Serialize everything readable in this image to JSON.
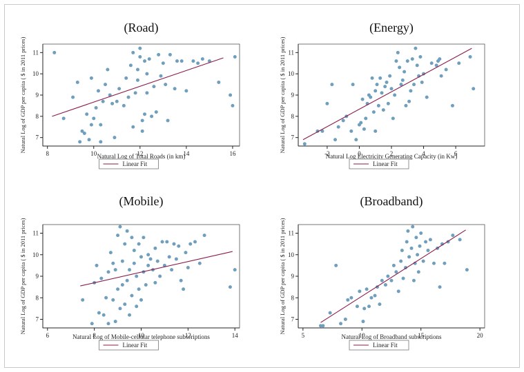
{
  "chart_data": [
    {
      "type": "scatter",
      "title": "(Road)",
      "xlabel": "Natural Log of Total Roads (in km)",
      "ylabel": "Natural Log of GDP per capita ( $ in 2011 prices)",
      "xlim": [
        7.8,
        16.3
      ],
      "ylim": [
        6.6,
        11.4
      ],
      "xticks": [
        8,
        10,
        12,
        14,
        16
      ],
      "yticks": [
        7,
        8,
        9,
        10,
        11
      ],
      "legend": "Linear Fit",
      "fit": {
        "x": [
          8.2,
          15.6
        ],
        "y": [
          8.0,
          10.75
        ]
      },
      "points": [
        [
          8.3,
          11.0
        ],
        [
          8.7,
          7.9
        ],
        [
          9.1,
          8.9
        ],
        [
          9.3,
          9.6
        ],
        [
          9.4,
          6.8
        ],
        [
          9.5,
          7.3
        ],
        [
          9.6,
          7.2
        ],
        [
          9.7,
          8.1
        ],
        [
          9.8,
          6.9
        ],
        [
          9.9,
          7.6
        ],
        [
          9.9,
          9.8
        ],
        [
          10.0,
          7.9
        ],
        [
          10.1,
          8.4
        ],
        [
          10.2,
          9.2
        ],
        [
          10.3,
          6.8
        ],
        [
          10.3,
          7.6
        ],
        [
          10.4,
          8.7
        ],
        [
          10.5,
          9.5
        ],
        [
          10.6,
          10.2
        ],
        [
          10.7,
          9.0
        ],
        [
          10.8,
          8.6
        ],
        [
          10.9,
          7.0
        ],
        [
          11.0,
          8.7
        ],
        [
          11.1,
          9.3
        ],
        [
          11.3,
          8.5
        ],
        [
          11.4,
          9.8
        ],
        [
          11.5,
          8.9
        ],
        [
          11.6,
          10.4
        ],
        [
          11.7,
          11.0
        ],
        [
          11.7,
          7.5
        ],
        [
          11.8,
          9.1
        ],
        [
          11.9,
          9.7
        ],
        [
          11.9,
          10.2
        ],
        [
          12.0,
          11.2
        ],
        [
          12.0,
          10.8
        ],
        [
          12.1,
          7.3
        ],
        [
          12.1,
          7.8
        ],
        [
          12.2,
          8.1
        ],
        [
          12.2,
          10.6
        ],
        [
          12.3,
          10.0
        ],
        [
          12.3,
          9.1
        ],
        [
          12.4,
          10.7
        ],
        [
          12.5,
          8.0
        ],
        [
          12.6,
          9.4
        ],
        [
          12.7,
          8.2
        ],
        [
          12.8,
          10.9
        ],
        [
          12.9,
          9.9
        ],
        [
          13.0,
          10.5
        ],
        [
          13.1,
          9.5
        ],
        [
          13.2,
          7.8
        ],
        [
          13.3,
          10.9
        ],
        [
          13.5,
          9.3
        ],
        [
          13.6,
          10.6
        ],
        [
          13.8,
          10.6
        ],
        [
          14.0,
          9.2
        ],
        [
          14.3,
          10.6
        ],
        [
          14.5,
          10.5
        ],
        [
          14.7,
          10.7
        ],
        [
          15.0,
          10.6
        ],
        [
          15.4,
          9.6
        ],
        [
          15.9,
          9.0
        ],
        [
          16.0,
          8.5
        ],
        [
          16.1,
          10.8
        ]
      ]
    },
    {
      "type": "scatter",
      "title": "(Energy)",
      "xlabel": "Natural Log Electricity Generating Capacity (in Kw)",
      "ylabel": "Natural Log of GDP per capita ( $ in 2011 prices)",
      "xlim": [
        -3.8,
        7.8
      ],
      "ylim": [
        6.6,
        11.4
      ],
      "xticks": [
        -2,
        0,
        2,
        4,
        6
      ],
      "yticks": [
        7,
        8,
        9,
        10,
        11
      ],
      "legend": "Linear Fit",
      "fit": {
        "x": [
          -3.5,
          7.0
        ],
        "y": [
          6.9,
          11.2
        ]
      },
      "points": [
        [
          -3.4,
          6.7
        ],
        [
          -2.6,
          7.3
        ],
        [
          -2.3,
          7.3
        ],
        [
          -2.0,
          8.6
        ],
        [
          -1.7,
          9.5
        ],
        [
          -1.5,
          6.9
        ],
        [
          -1.3,
          7.5
        ],
        [
          -1.0,
          7.8
        ],
        [
          -0.8,
          8.0
        ],
        [
          -0.5,
          7.3
        ],
        [
          -0.4,
          9.5
        ],
        [
          -0.2,
          6.9
        ],
        [
          0.0,
          7.6
        ],
        [
          0.1,
          7.7
        ],
        [
          0.2,
          8.8
        ],
        [
          0.3,
          7.4
        ],
        [
          0.4,
          7.9
        ],
        [
          0.5,
          8.6
        ],
        [
          0.6,
          9.0
        ],
        [
          0.7,
          8.9
        ],
        [
          0.8,
          9.8
        ],
        [
          0.9,
          8.2
        ],
        [
          1.0,
          9.2
        ],
        [
          1.0,
          7.3
        ],
        [
          1.1,
          9.5
        ],
        [
          1.2,
          8.5
        ],
        [
          1.3,
          9.8
        ],
        [
          1.4,
          9.1
        ],
        [
          1.5,
          8.3
        ],
        [
          1.6,
          9.4
        ],
        [
          1.7,
          9.6
        ],
        [
          1.8,
          8.6
        ],
        [
          1.9,
          9.9
        ],
        [
          2.0,
          9.3
        ],
        [
          2.1,
          7.9
        ],
        [
          2.2,
          9.0
        ],
        [
          2.3,
          10.6
        ],
        [
          2.4,
          11.0
        ],
        [
          2.5,
          10.3
        ],
        [
          2.6,
          9.5
        ],
        [
          2.7,
          9.7
        ],
        [
          2.8,
          10.1
        ],
        [
          2.9,
          8.5
        ],
        [
          3.0,
          10.6
        ],
        [
          3.1,
          8.7
        ],
        [
          3.2,
          9.2
        ],
        [
          3.3,
          10.7
        ],
        [
          3.4,
          9.5
        ],
        [
          3.5,
          11.2
        ],
        [
          3.6,
          10.4
        ],
        [
          3.7,
          9.9
        ],
        [
          3.8,
          10.8
        ],
        [
          3.9,
          9.6
        ],
        [
          4.0,
          10.0
        ],
        [
          4.2,
          8.9
        ],
        [
          4.5,
          10.5
        ],
        [
          4.8,
          10.4
        ],
        [
          4.9,
          10.6
        ],
        [
          5.0,
          10.7
        ],
        [
          5.1,
          9.9
        ],
        [
          5.4,
          10.2
        ],
        [
          5.8,
          8.5
        ],
        [
          6.2,
          10.5
        ],
        [
          6.9,
          10.8
        ],
        [
          7.1,
          9.3
        ]
      ]
    },
    {
      "type": "scatter",
      "title": "(Mobile)",
      "xlabel": "Natural Log of Mobile-cellular telephone subscriptions",
      "ylabel": "Natural Log of GDP per capita ( $ in 2011 prices)",
      "xlim": [
        5.8,
        14.2
      ],
      "ylim": [
        6.6,
        11.4
      ],
      "xticks": [
        6,
        8,
        10,
        12,
        14
      ],
      "yticks": [
        7,
        8,
        9,
        10,
        11
      ],
      "legend": "Linear Fit",
      "fit": {
        "x": [
          7.4,
          13.9
        ],
        "y": [
          8.55,
          10.15
        ]
      },
      "points": [
        [
          7.5,
          7.9
        ],
        [
          7.9,
          6.8
        ],
        [
          8.0,
          8.7
        ],
        [
          8.1,
          9.5
        ],
        [
          8.2,
          7.3
        ],
        [
          8.3,
          8.9
        ],
        [
          8.4,
          7.2
        ],
        [
          8.5,
          8.0
        ],
        [
          8.6,
          6.8
        ],
        [
          8.6,
          9.2
        ],
        [
          8.7,
          10.1
        ],
        [
          8.8,
          9.6
        ],
        [
          8.8,
          7.9
        ],
        [
          8.9,
          6.9
        ],
        [
          8.9,
          9.3
        ],
        [
          9.0,
          10.9
        ],
        [
          9.0,
          8.4
        ],
        [
          9.1,
          7.5
        ],
        [
          9.1,
          11.3
        ],
        [
          9.2,
          9.7
        ],
        [
          9.2,
          8.6
        ],
        [
          9.3,
          7.7
        ],
        [
          9.3,
          10.5
        ],
        [
          9.4,
          11.1
        ],
        [
          9.4,
          8.8
        ],
        [
          9.5,
          9.3
        ],
        [
          9.5,
          7.2
        ],
        [
          9.6,
          10.8
        ],
        [
          9.6,
          8.1
        ],
        [
          9.7,
          9.6
        ],
        [
          9.7,
          10.2
        ],
        [
          9.8,
          7.6
        ],
        [
          9.8,
          9.0
        ],
        [
          9.9,
          10.5
        ],
        [
          9.9,
          8.4
        ],
        [
          10.0,
          9.9
        ],
        [
          10.0,
          7.9
        ],
        [
          10.1,
          9.2
        ],
        [
          10.1,
          10.8
        ],
        [
          10.2,
          8.6
        ],
        [
          10.3,
          9.5
        ],
        [
          10.3,
          10.0
        ],
        [
          10.4,
          9.8
        ],
        [
          10.5,
          9.3
        ],
        [
          10.6,
          8.7
        ],
        [
          10.6,
          10.3
        ],
        [
          10.7,
          9.7
        ],
        [
          10.8,
          9.0
        ],
        [
          10.9,
          10.6
        ],
        [
          11.0,
          9.5
        ],
        [
          11.1,
          10.6
        ],
        [
          11.2,
          9.9
        ],
        [
          11.3,
          9.3
        ],
        [
          11.4,
          10.5
        ],
        [
          11.5,
          9.8
        ],
        [
          11.6,
          10.4
        ],
        [
          11.7,
          8.8
        ],
        [
          11.8,
          8.4
        ],
        [
          11.9,
          10.1
        ],
        [
          12.0,
          9.4
        ],
        [
          12.1,
          10.5
        ],
        [
          12.3,
          10.6
        ],
        [
          12.5,
          9.6
        ],
        [
          12.7,
          10.9
        ],
        [
          13.8,
          8.5
        ],
        [
          14.0,
          9.3
        ]
      ]
    },
    {
      "type": "scatter",
      "title": "(Broadband)",
      "xlabel": "Natural Log of Broadband subscriptions",
      "ylabel": "Natural Log of GDP per capita ( $ in 2011 prices)",
      "xlim": [
        4.6,
        20.4
      ],
      "ylim": [
        6.6,
        11.4
      ],
      "xticks": [
        5,
        10,
        15,
        20
      ],
      "yticks": [
        7,
        8,
        9,
        10,
        11
      ],
      "legend": "Linear Fit",
      "fit": {
        "x": [
          6.5,
          18.8
        ],
        "y": [
          6.85,
          11.15
        ]
      },
      "points": [
        [
          6.5,
          6.7
        ],
        [
          6.7,
          6.7
        ],
        [
          7.3,
          7.3
        ],
        [
          7.8,
          9.5
        ],
        [
          8.2,
          6.8
        ],
        [
          8.6,
          7.0
        ],
        [
          8.8,
          7.9
        ],
        [
          9.1,
          8.0
        ],
        [
          9.6,
          7.6
        ],
        [
          9.8,
          8.3
        ],
        [
          10.1,
          6.9
        ],
        [
          10.2,
          7.5
        ],
        [
          10.4,
          8.4
        ],
        [
          10.6,
          7.6
        ],
        [
          10.8,
          8.0
        ],
        [
          11.1,
          8.1
        ],
        [
          11.3,
          8.5
        ],
        [
          11.5,
          7.7
        ],
        [
          11.7,
          8.8
        ],
        [
          12.0,
          8.6
        ],
        [
          12.2,
          9.0
        ],
        [
          12.5,
          8.8
        ],
        [
          12.7,
          9.5
        ],
        [
          12.9,
          9.2
        ],
        [
          13.1,
          8.3
        ],
        [
          13.3,
          9.7
        ],
        [
          13.4,
          10.2
        ],
        [
          13.5,
          8.9
        ],
        [
          13.7,
          9.4
        ],
        [
          13.8,
          10.6
        ],
        [
          13.9,
          11.1
        ],
        [
          14.0,
          9.9
        ],
        [
          14.2,
          10.3
        ],
        [
          14.3,
          11.3
        ],
        [
          14.4,
          8.8
        ],
        [
          14.5,
          9.6
        ],
        [
          14.6,
          10.8
        ],
        [
          14.7,
          10.0
        ],
        [
          14.8,
          9.2
        ],
        [
          14.9,
          10.4
        ],
        [
          15.0,
          11.0
        ],
        [
          15.2,
          9.7
        ],
        [
          15.4,
          10.6
        ],
        [
          15.6,
          10.2
        ],
        [
          15.8,
          10.7
        ],
        [
          16.1,
          9.6
        ],
        [
          16.4,
          10.3
        ],
        [
          16.6,
          8.5
        ],
        [
          16.8,
          10.5
        ],
        [
          17.0,
          9.6
        ],
        [
          17.3,
          10.6
        ],
        [
          17.7,
          10.9
        ],
        [
          18.3,
          10.7
        ],
        [
          18.9,
          9.3
        ]
      ]
    }
  ],
  "colors": {
    "point": "#6f9fbd",
    "fit": "#8b1a4a",
    "axis": "#222222",
    "frame": "#c9c9c9"
  }
}
